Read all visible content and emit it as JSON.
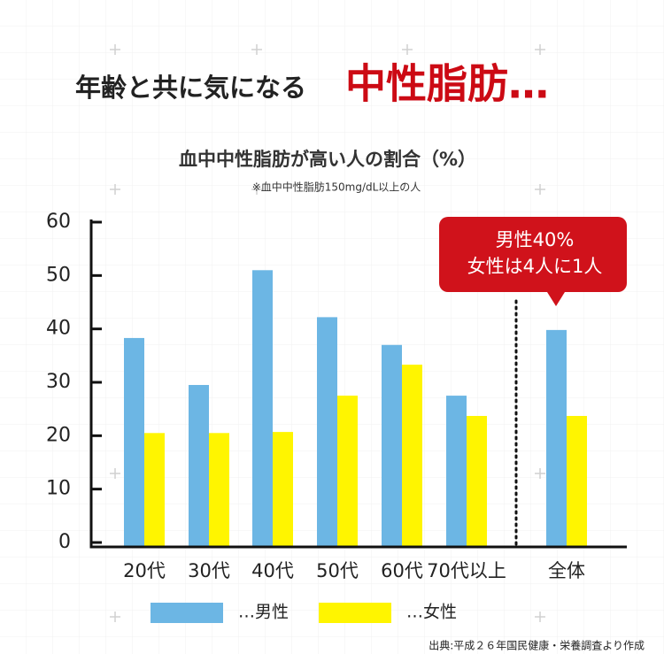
{
  "header": {
    "title_lead": "年齢と共に気になる",
    "title_emphasis": "中性脂肪…"
  },
  "chart_data": {
    "type": "bar",
    "title": "血中中性脂肪が高い人の割合（%）",
    "subtitle": "※血中中性脂肪150mg/dL以上の人",
    "categories": [
      "20代",
      "30代",
      "40代",
      "50代",
      "60代",
      "70代以上",
      "全体"
    ],
    "series": [
      {
        "name": "…男性",
        "color": "#6cb6e4",
        "values": [
          38.3,
          29.5,
          51.0,
          42.2,
          37.0,
          27.5,
          39.8
        ]
      },
      {
        "name": "…女性",
        "color": "#fff500",
        "values": [
          20.5,
          20.5,
          20.7,
          27.5,
          33.3,
          23.7,
          23.7
        ]
      }
    ],
    "ylim": [
      0,
      60
    ],
    "yticks": [
      0,
      10,
      20,
      30,
      40,
      50,
      60
    ],
    "callout": [
      "男性40%",
      "女性は4人に1人"
    ],
    "source": "出典:平成２６年国民健康・栄養調査より作成"
  }
}
